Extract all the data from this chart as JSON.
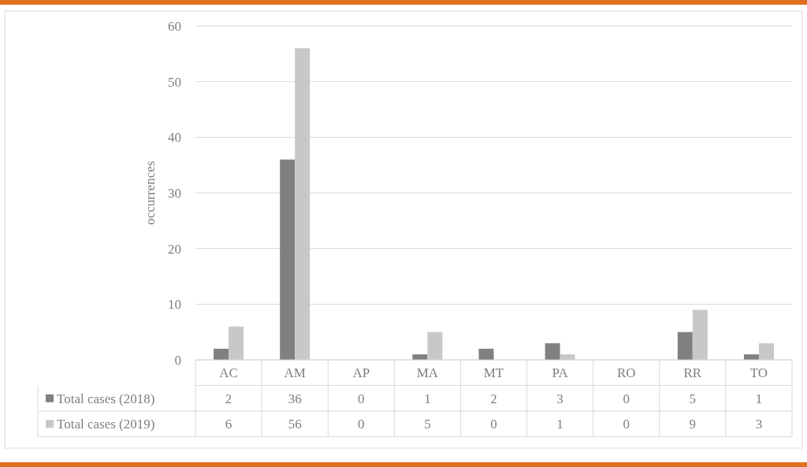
{
  "chart_data": {
    "type": "bar",
    "ylabel": "occurrences",
    "categories": [
      "AC",
      "AM",
      "AP",
      "MA",
      "MT",
      "PA",
      "RO",
      "RR",
      "TO"
    ],
    "series": [
      {
        "name": "Total cases (2018)",
        "color": "#808080",
        "values": [
          2,
          36,
          0,
          1,
          2,
          3,
          0,
          5,
          1
        ]
      },
      {
        "name": "Total cases (2019)",
        "color": "#c8c8c8",
        "values": [
          6,
          56,
          0,
          5,
          0,
          1,
          0,
          9,
          3
        ]
      }
    ],
    "ylim": [
      0,
      60
    ],
    "yticks": [
      0,
      10,
      20,
      30,
      40,
      50,
      60
    ],
    "grid": "y",
    "legend": "bottom",
    "data_labels": true
  }
}
